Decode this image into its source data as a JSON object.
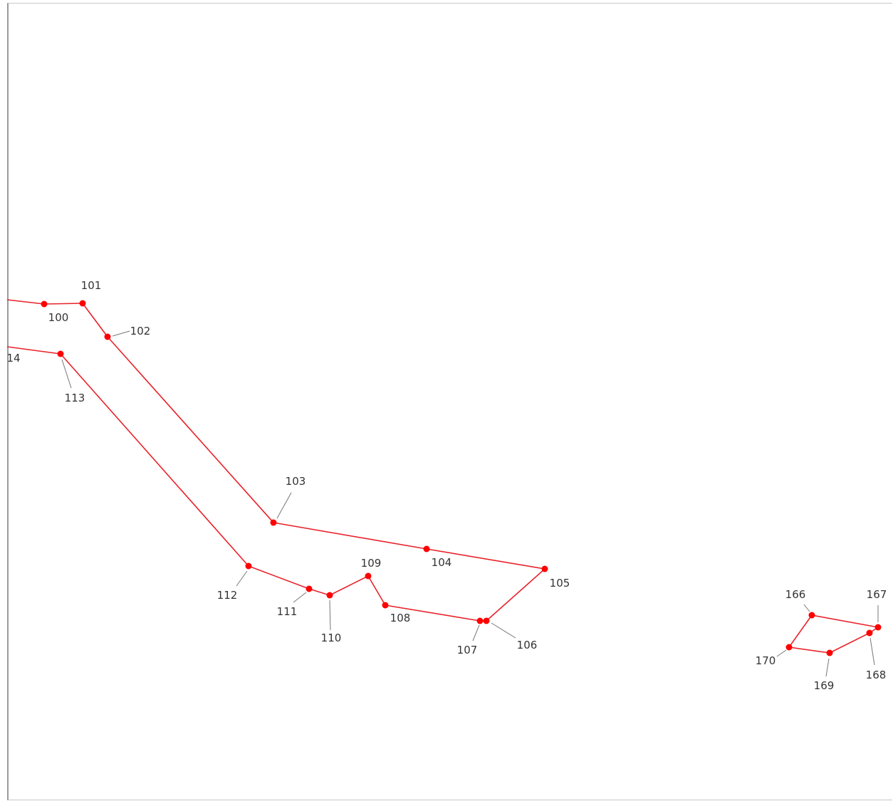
{
  "colors": {
    "polyline": "#e8222a",
    "vertex": "#ff0000",
    "leader": "#777777",
    "label": "#333333"
  },
  "figure": {
    "shapes": [
      {
        "id": "outer-upper-edge",
        "closed": false,
        "vertices": [
          "100",
          "101",
          "102",
          "103",
          "104",
          "105",
          "106",
          "107",
          "108",
          "109",
          "110",
          "111",
          "112",
          "113",
          "14"
        ]
      },
      {
        "id": "small-quad",
        "closed": true,
        "vertices": [
          "166",
          "167",
          "168",
          "169",
          "170"
        ]
      }
    ],
    "vertex_labels": [
      "100",
      "101",
      "102",
      "103",
      "104",
      "105",
      "106",
      "107",
      "108",
      "109",
      "110",
      "111",
      "112",
      "113",
      "14",
      "166",
      "167",
      "168",
      "169",
      "170"
    ]
  }
}
